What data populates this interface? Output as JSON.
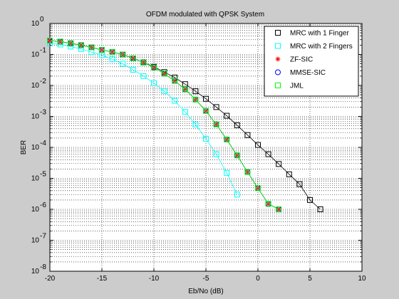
{
  "chart_data": {
    "type": "line",
    "title": "OFDM modulated with QPSK System",
    "xlabel": "Eb/No (dB)",
    "ylabel": "BER",
    "xlim": [
      -20,
      10
    ],
    "ylim_log10": [
      -8,
      0
    ],
    "y_scale": "log",
    "grid": true,
    "grid_style": "dotted",
    "legend_position": "top-right",
    "x_ticks": [
      -20,
      -15,
      -10,
      -5,
      0,
      5,
      10
    ],
    "y_tick_exponents": [
      -8,
      -7,
      -6,
      -5,
      -4,
      -3,
      -2,
      -1,
      0
    ],
    "series": [
      {
        "name": "MRC with 1 Finger",
        "color": "#000000",
        "marker": "square",
        "x": [
          -20,
          -19,
          -18,
          -17,
          -16,
          -15,
          -14,
          -13,
          -12,
          -11,
          -10,
          -9,
          -8,
          -7,
          -6,
          -5,
          -4,
          -3,
          -2,
          -1,
          0,
          1,
          2,
          3,
          4,
          5,
          6
        ],
        "y": [
          0.28,
          0.26,
          0.23,
          0.2,
          0.17,
          0.14,
          0.12,
          0.1,
          0.075,
          0.055,
          0.04,
          0.027,
          0.018,
          0.011,
          0.0065,
          0.0037,
          0.002,
          0.00105,
          0.00052,
          0.00025,
          0.00012,
          6e-05,
          2.9e-05,
          1.35e-05,
          6.5e-06,
          2e-06,
          1e-06
        ]
      },
      {
        "name": "MRC with 2 Fingers",
        "color": "#00ffff",
        "marker": "square",
        "x": [
          -20,
          -19,
          -18,
          -17,
          -16,
          -15,
          -14,
          -13,
          -12,
          -11,
          -10,
          -9,
          -8,
          -7,
          -6,
          -5,
          -4,
          -3,
          -2
        ],
        "y": [
          0.23,
          0.21,
          0.18,
          0.15,
          0.12,
          0.095,
          0.07,
          0.05,
          0.032,
          0.02,
          0.012,
          0.0065,
          0.0032,
          0.0014,
          0.00055,
          0.00019,
          6e-05,
          1.5e-05,
          3e-06
        ]
      },
      {
        "name": "ZF-SIC",
        "color": "#ff0000",
        "marker": "star",
        "x": [
          -20,
          -19,
          -18,
          -17,
          -16,
          -15,
          -14,
          -13,
          -12,
          -11,
          -10,
          -9,
          -8,
          -7,
          -6,
          -5,
          -4,
          -3,
          -2,
          -1,
          0,
          1,
          2
        ],
        "y": [
          0.28,
          0.26,
          0.23,
          0.2,
          0.17,
          0.14,
          0.12,
          0.1,
          0.075,
          0.055,
          0.038,
          0.024,
          0.014,
          0.0075,
          0.0035,
          0.0015,
          0.00055,
          0.00018,
          5.5e-05,
          1.6e-05,
          4.8e-06,
          1.5e-06,
          1e-06
        ]
      },
      {
        "name": "MMSE-SIC",
        "color": "#0000ff",
        "marker": "circle",
        "x": [
          -20,
          -19,
          -18,
          -17,
          -16,
          -15,
          -14,
          -13,
          -12,
          -11,
          -10,
          -9,
          -8,
          -7,
          -6,
          -5,
          -4,
          -3,
          -2,
          -1,
          0,
          1,
          2
        ],
        "y": [
          0.28,
          0.26,
          0.23,
          0.2,
          0.17,
          0.14,
          0.12,
          0.1,
          0.075,
          0.055,
          0.038,
          0.024,
          0.014,
          0.0075,
          0.0035,
          0.0015,
          0.00055,
          0.00018,
          5.5e-05,
          1.6e-05,
          4.8e-06,
          1.5e-06,
          1e-06
        ]
      },
      {
        "name": "JML",
        "color": "#00ff00",
        "marker": "square",
        "x": [
          -20,
          -19,
          -18,
          -17,
          -16,
          -15,
          -14,
          -13,
          -12,
          -11,
          -10,
          -9,
          -8,
          -7,
          -6,
          -5,
          -4,
          -3,
          -2,
          -1,
          0,
          1,
          2
        ],
        "y": [
          0.28,
          0.26,
          0.23,
          0.2,
          0.17,
          0.14,
          0.12,
          0.1,
          0.075,
          0.055,
          0.038,
          0.024,
          0.014,
          0.0075,
          0.0035,
          0.0015,
          0.00055,
          0.00018,
          5.5e-05,
          1.6e-05,
          4.8e-06,
          1.5e-06,
          1e-06
        ]
      }
    ]
  }
}
